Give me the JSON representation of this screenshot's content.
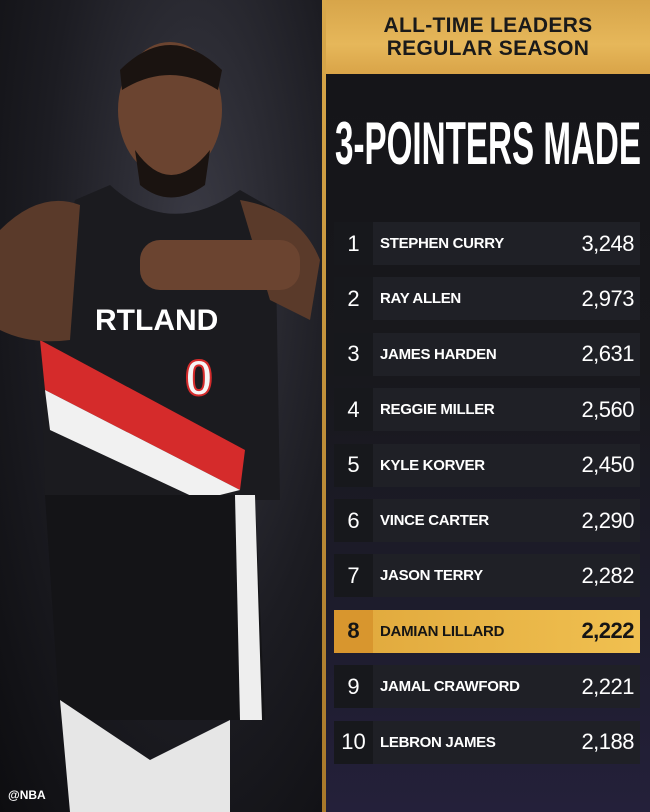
{
  "header": {
    "line1": "ALL-TIME LEADERS",
    "line2": "REGULAR SEASON"
  },
  "title": "3-POINTERS MADE",
  "highlight_color": "#e6b04a",
  "leaders": [
    {
      "rank": "1",
      "name": "STEPHEN CURRY",
      "value": "3,248"
    },
    {
      "rank": "2",
      "name": "RAY ALLEN",
      "value": "2,973"
    },
    {
      "rank": "3",
      "name": "JAMES HARDEN",
      "value": "2,631"
    },
    {
      "rank": "4",
      "name": "REGGIE MILLER",
      "value": "2,560"
    },
    {
      "rank": "5",
      "name": "KYLE KORVER",
      "value": "2,450"
    },
    {
      "rank": "6",
      "name": "VINCE CARTER",
      "value": "2,290"
    },
    {
      "rank": "7",
      "name": "JASON TERRY",
      "value": "2,282"
    },
    {
      "rank": "8",
      "name": "DAMIAN LILLARD",
      "value": "2,222",
      "highlighted": true
    },
    {
      "rank": "9",
      "name": "JAMAL CRAWFORD",
      "value": "2,221"
    },
    {
      "rank": "10",
      "name": "LEBRON JAMES",
      "value": "2,188"
    }
  ],
  "photo": {
    "jersey_text": "RTLAND",
    "jersey_number": "0"
  },
  "watermark": "@NBA"
}
